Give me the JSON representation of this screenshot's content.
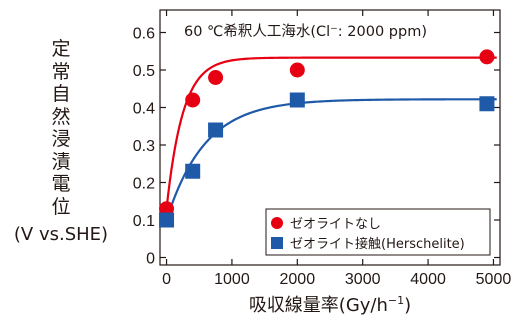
{
  "chart_data": {
    "type": "scatter",
    "annotation": "60 ℃希釈人工海水(Cl⁻: 2000 ppm)",
    "xlabel_main": "吸収線量率(Gy/h",
    "xlabel_sup": "−1",
    "xlabel_close": ")",
    "ylabel_chars": [
      "定",
      "常",
      "自",
      "然",
      "浸",
      "漬",
      "電",
      "位"
    ],
    "ylabel_unit": "(V vs.SHE)",
    "xlim": [
      -100,
      5100
    ],
    "ylim": [
      -0.02,
      0.66
    ],
    "xticks": [
      0,
      1000,
      2000,
      3000,
      4000,
      5000
    ],
    "yticks": [
      0,
      0.1,
      0.2,
      0.3,
      0.4,
      0.5,
      0.6
    ],
    "xtick_labels": [
      "0",
      "1000",
      "2000",
      "3000",
      "4000",
      "5000"
    ],
    "ytick_labels": [
      "0",
      "0.1",
      "0.2",
      "0.3",
      "0.4",
      "0.5",
      "0.6"
    ],
    "legend_position": "lower-right",
    "series": [
      {
        "name": "ゼオライトなし",
        "marker": "circle",
        "color": "#e60012",
        "x": [
          0,
          400,
          750,
          2000,
          4900
        ],
        "y": [
          0.13,
          0.42,
          0.48,
          0.5,
          0.535
        ],
        "fit_curve": {
          "y_inf": 0.533,
          "y0": 0.13,
          "rate": 0.004
        }
      },
      {
        "name": "ゼオライト接触(Herschelite)",
        "marker": "square",
        "color": "#1f5aa8",
        "x": [
          0,
          400,
          750,
          2000,
          4900
        ],
        "y": [
          0.1,
          0.23,
          0.34,
          0.42,
          0.41
        ],
        "fit_curve": {
          "y_inf": 0.422,
          "y0": 0.1,
          "rate": 0.0017
        }
      }
    ]
  }
}
